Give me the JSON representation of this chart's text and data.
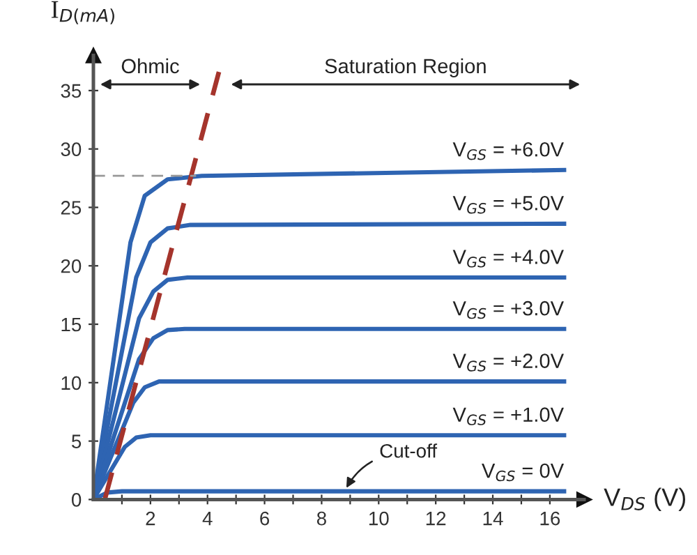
{
  "chart_data": {
    "type": "line",
    "xlabel": "V$_{DS}$ (V)",
    "ylabel": "I$_{D(mA)}$",
    "xlim": [
      0,
      17.2
    ],
    "ylim": [
      0,
      38
    ],
    "xticks": [
      {
        "value": 1,
        "label": null
      },
      2,
      {
        "value": 3,
        "label": null
      },
      4,
      {
        "value": 5,
        "label": null
      },
      6,
      {
        "value": 7,
        "label": null
      },
      8,
      {
        "value": 9,
        "label": null
      },
      10,
      {
        "value": 11,
        "label": null
      },
      12,
      {
        "value": 13,
        "label": null
      },
      14,
      {
        "value": 15,
        "label": null
      },
      16
    ],
    "yticks": [
      0,
      5,
      10,
      15,
      20,
      25,
      30,
      35
    ],
    "grid": false,
    "legend": false,
    "marker": "none",
    "series": [
      {
        "name": "V$_{GS}$ = +6.0V",
        "color": "#2e64b2",
        "x": [
          0,
          1.3,
          1.8,
          2.6,
          3.8,
          16.5
        ],
        "values": [
          0,
          22,
          26,
          27.4,
          27.7,
          28.2
        ]
      },
      {
        "name": "V$_{GS}$ = +5.0V",
        "color": "#2e64b2",
        "x": [
          0,
          1.5,
          2,
          2.6,
          3.4,
          16.5
        ],
        "values": [
          0,
          19,
          22,
          23.2,
          23.5,
          23.6
        ]
      },
      {
        "name": "V$_{GS}$ = +4.0V",
        "color": "#2e64b2",
        "x": [
          0,
          1.6,
          2.1,
          2.6,
          3.3,
          16.5
        ],
        "values": [
          0,
          15.5,
          17.8,
          18.8,
          19.0,
          19.0
        ]
      },
      {
        "name": "V$_{GS}$ = +3.0V",
        "color": "#2e64b2",
        "x": [
          0,
          1.6,
          2.1,
          2.6,
          3.2,
          16.5
        ],
        "values": [
          0,
          12,
          13.8,
          14.5,
          14.6,
          14.6
        ]
      },
      {
        "name": "V$_{GS}$ = +2.0V",
        "color": "#2e64b2",
        "x": [
          0,
          1.4,
          1.8,
          2.3,
          3,
          16.5
        ],
        "values": [
          0,
          8.3,
          9.6,
          10.1,
          10.1,
          10.1
        ]
      },
      {
        "name": "V$_{GS}$ = +1.0V",
        "color": "#2e64b2",
        "x": [
          0,
          1.1,
          1.5,
          2,
          16.5
        ],
        "values": [
          0,
          4.5,
          5.3,
          5.5,
          5.5
        ]
      },
      {
        "name": "V$_{GS}$ = 0V",
        "color": "#2e64b2",
        "x": [
          0,
          0.5,
          1,
          16.5
        ],
        "values": [
          0,
          0.6,
          0.7,
          0.7
        ]
      },
      {
        "color": "#a5342c",
        "line_style": "dashed",
        "x": [
          0.4,
          4.4
        ],
        "values": [
          0,
          36.6
        ]
      },
      {
        "color": "#999999",
        "line_style": "dashed",
        "x": [
          0,
          3.6
        ],
        "values": [
          27.7,
          27.7
        ]
      }
    ],
    "annotations": [
      "Ohmic",
      "Saturation Region",
      {
        "text": "Cut-off",
        "x": 8.8,
        "y": 0.7
      }
    ]
  }
}
